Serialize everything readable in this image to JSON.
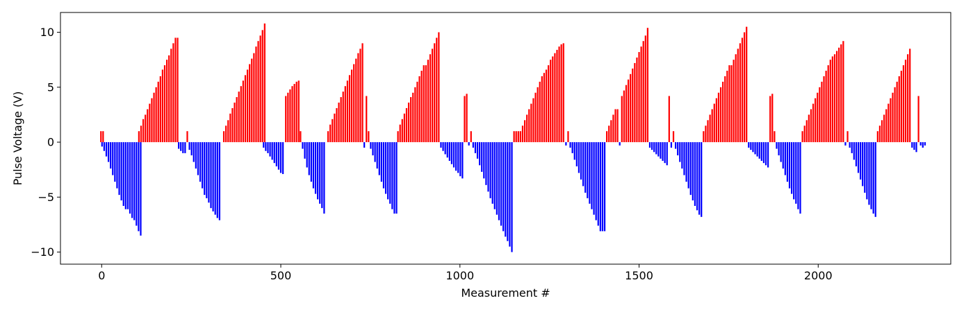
{
  "chart_data": {
    "type": "bar",
    "title": "",
    "xlabel": "Measurement #",
    "ylabel": "Pulse Voltage (V)",
    "xlim": [
      -115,
      2370
    ],
    "ylim": [
      -11.1,
      11.8
    ],
    "x_ticks": [
      0,
      500,
      1000,
      1500,
      2000
    ],
    "y_ticks": [
      -10,
      -5,
      0,
      5,
      10
    ],
    "grid": false,
    "legend": "none",
    "colors": {
      "positive": "#ff0000",
      "negative": "#0000ff",
      "axes": "#000000"
    },
    "bar_spacing": 6,
    "segments": [
      {
        "x_start": -2,
        "values": [
          1,
          1
        ]
      },
      {
        "x_start": 1,
        "values": [
          -0.4,
          -0.8,
          -1.3,
          -1.8,
          -2.4,
          -3.0,
          -3.6,
          -4.2,
          -4.8,
          -5.3,
          -5.8,
          -6.1,
          -6.1,
          -6.5,
          -6.9,
          -7.1,
          -7.6,
          -8.1,
          -8.5
        ]
      },
      {
        "x_start": 104,
        "values": [
          1.0,
          1.5,
          2.1,
          2.5,
          3.0,
          3.5,
          4.0,
          4.5,
          5.0,
          5.5,
          6.0,
          6.6,
          7.0,
          7.5,
          7.9,
          8.5,
          9.0,
          9.5,
          9.5
        ]
      },
      {
        "x_start": 215,
        "values": [
          -0.6,
          -0.8,
          -1.0,
          -1.0,
          1.0,
          -0.7,
          -1.2
        ]
      },
      {
        "x_start": 257,
        "values": [
          -1.8,
          -2.4,
          -3.0,
          -3.6,
          -4.2,
          -4.8,
          -5.1,
          -5.5,
          -6.0,
          -6.3,
          -6.6,
          -6.9,
          -7.1
        ]
      },
      {
        "x_start": 341,
        "values": [
          1.0,
          1.5,
          2.0,
          2.6,
          3.1,
          3.6,
          4.1,
          4.6,
          5.1,
          5.6,
          6.1,
          6.6,
          7.1,
          7.6,
          8.1,
          8.7,
          9.2,
          9.7,
          10.2,
          10.8
        ]
      },
      {
        "x_start": 452,
        "values": [
          -0.5,
          -0.8,
          -1.0,
          -1.3,
          -1.6,
          -1.9,
          -2.2,
          -2.5,
          -2.8,
          -2.9
        ]
      },
      {
        "x_start": 514,
        "values": [
          4.2,
          4.5,
          4.8,
          5.1,
          5.3,
          5.5,
          5.6
        ]
      },
      {
        "x_start": 555,
        "values": [
          1.0,
          -0.6,
          -1.5,
          -2.3,
          -3.0,
          -3.6,
          -4.2,
          -4.7,
          -5.2,
          -5.6,
          -6.0,
          -6.5
        ]
      },
      {
        "x_start": 632,
        "values": [
          1.0,
          1.6,
          2.1,
          2.6,
          3.1,
          3.6,
          4.1,
          4.6,
          5.1,
          5.6,
          6.1,
          6.6,
          7.1,
          7.6,
          8.1,
          8.5,
          9.0
        ]
      },
      {
        "x_start": 733,
        "values": [
          -0.5,
          4.2,
          1.0,
          -0.6,
          -1.2,
          -1.8,
          -2.4,
          -3.0,
          -3.6,
          -4.2,
          -4.7,
          -5.2,
          -5.6,
          -6.1,
          -6.5,
          -6.5
        ]
      },
      {
        "x_start": 827,
        "values": [
          1.0,
          1.6,
          2.1,
          2.6,
          3.1,
          3.6,
          4.1,
          4.5,
          5.0,
          5.5,
          6.0,
          6.5,
          7.0,
          7.0,
          7.5,
          8.0,
          8.5,
          9.0,
          9.5,
          10.0
        ]
      },
      {
        "x_start": 947,
        "values": [
          -0.5,
          -0.8,
          -1.1,
          -1.4,
          -1.7,
          -2.0,
          -2.3,
          -2.6,
          -2.8,
          -3.1,
          -3.3
        ]
      },
      {
        "x_start": 1013,
        "values": [
          4.2,
          4.4,
          -0.3,
          1.0,
          -0.5,
          -1.0,
          -1.5,
          -2.1,
          -2.7,
          -3.3,
          -3.9,
          -4.5,
          -5.1,
          -5.6,
          -6.1,
          -6.6,
          -7.1,
          -7.6,
          -8.1,
          -8.6,
          -9.0,
          -9.5,
          -10.0
        ]
      },
      {
        "x_start": 1151,
        "values": [
          1.0,
          1.0,
          1.0,
          1.0,
          1.5,
          2.0,
          2.5,
          3.0,
          3.5,
          4.0,
          4.5,
          5.0,
          5.5,
          6.0,
          6.3,
          6.6,
          7.0,
          7.5,
          7.8,
          8.1,
          8.4,
          8.7,
          8.9,
          9.0
        ]
      },
      {
        "x_start": 1296,
        "values": [
          -0.3,
          1.0,
          -0.5,
          -1.0,
          -1.6,
          -2.2,
          -2.8,
          -3.4,
          -4.0,
          -4.6,
          -5.1,
          -5.6,
          -6.1,
          -6.6,
          -7.1,
          -7.6,
          -8.1,
          -8.1,
          -8.1
        ]
      },
      {
        "x_start": 1410,
        "values": [
          1.0,
          1.5,
          2.0,
          2.5,
          3.0,
          3.0,
          -0.3,
          4.2,
          4.7,
          5.2,
          5.7,
          6.2,
          6.7,
          7.2,
          7.7,
          8.2,
          8.7,
          9.2,
          9.7,
          10.4
        ]
      },
      {
        "x_start": 1530,
        "values": [
          -0.5,
          -0.7,
          -0.9,
          -1.1,
          -1.3,
          -1.5,
          -1.7,
          -1.9,
          -2.1
        ]
      },
      {
        "x_start": 1584,
        "values": [
          4.2,
          -0.5,
          1.0
        ]
      },
      {
        "x_start": 1602,
        "values": [
          -0.6,
          -1.2,
          -1.8,
          -2.4,
          -3.0,
          -3.6,
          -4.2,
          -4.8,
          -5.3,
          -5.8,
          -6.2,
          -6.6,
          -6.8
        ]
      },
      {
        "x_start": 1680,
        "values": [
          1.0,
          1.5,
          2.0,
          2.5,
          3.0,
          3.5,
          4.0,
          4.5,
          5.0,
          5.5,
          6.0,
          6.5,
          7.0,
          7.0,
          7.5,
          8.0,
          8.5,
          9.0,
          9.5,
          10.0,
          10.5
        ]
      },
      {
        "x_start": 1806,
        "values": [
          -0.5,
          -0.7,
          -0.9,
          -1.1,
          -1.3,
          -1.5,
          -1.7,
          -1.9,
          -2.1,
          -2.3
        ]
      },
      {
        "x_start": 1866,
        "values": [
          4.2,
          4.4,
          1.0,
          -0.6,
          -1.2,
          -1.8,
          -2.4,
          -3.0,
          -3.6,
          -4.2,
          -4.7,
          -5.2,
          -5.6,
          -6.1,
          -6.5
        ]
      },
      {
        "x_start": 1956,
        "values": [
          1.0,
          1.5,
          2.0,
          2.5,
          3.0,
          3.5,
          4.0,
          4.5,
          5.0,
          5.5,
          6.0,
          6.5,
          7.0,
          7.5,
          7.8,
          8.0,
          8.3,
          8.6,
          8.9,
          9.2
        ]
      },
      {
        "x_start": 2076,
        "values": [
          -0.3,
          1.0,
          -0.5,
          -1.0,
          -1.6,
          -2.2,
          -2.8,
          -3.4,
          -4.0,
          -4.6,
          -5.2,
          -5.7,
          -6.1,
          -6.5,
          -6.8
        ]
      },
      {
        "x_start": 2166,
        "values": [
          1.0,
          1.5,
          2.0,
          2.5,
          3.0,
          3.5,
          4.0,
          4.5,
          5.0,
          5.5,
          6.0,
          6.5,
          7.0,
          7.5,
          8.0,
          8.5
        ]
      },
      {
        "x_start": 2262,
        "values": [
          -0.5,
          -0.7,
          -0.9,
          4.2,
          -0.3,
          -0.5,
          -0.3
        ]
      }
    ]
  }
}
